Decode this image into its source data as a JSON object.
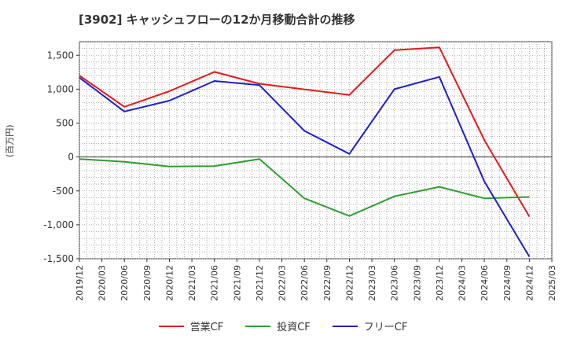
{
  "chart_data": {
    "type": "line",
    "title": "[3902]  キャッシュフローの12か月移動合計の推移",
    "xlabel": "",
    "ylabel": "(百万円)",
    "ylim": [
      -1500,
      1700
    ],
    "yticks": [
      1500,
      1000,
      500,
      0,
      -500,
      -1000,
      -1500
    ],
    "ytick_labels": [
      "1,500",
      "1,000",
      "500",
      "0",
      "-500",
      "-1,000",
      "-1,500"
    ],
    "xticks": [
      "2019/12",
      "2020/03",
      "2020/06",
      "2020/09",
      "2020/12",
      "2021/03",
      "2021/06",
      "2021/09",
      "2021/12",
      "2022/03",
      "2022/06",
      "2022/09",
      "2022/12",
      "2023/03",
      "2023/06",
      "2023/09",
      "2023/12",
      "2024/03",
      "2024/06",
      "2024/09",
      "2024/12",
      "2025/03"
    ],
    "grid": true,
    "legend_position": "bottom",
    "series": [
      {
        "name": "営業CF",
        "color": "#e31a1c",
        "x": [
          "2019/12",
          "2020/06",
          "2020/12",
          "2021/06",
          "2021/12",
          "2022/12",
          "2023/06",
          "2023/12",
          "2024/06",
          "2024/12"
        ],
        "values": [
          1200,
          740,
          970,
          1255,
          1080,
          915,
          1575,
          1615,
          250,
          -880
        ]
      },
      {
        "name": "投資CF",
        "color": "#2ca02c",
        "x": [
          "2019/12",
          "2020/06",
          "2020/12",
          "2021/06",
          "2021/12",
          "2022/06",
          "2022/12",
          "2023/06",
          "2023/12",
          "2024/06",
          "2024/12"
        ],
        "values": [
          -30,
          -70,
          -140,
          -135,
          -30,
          -610,
          -870,
          -580,
          -440,
          -610,
          -590
        ]
      },
      {
        "name": "フリーCF",
        "color": "#1f1fcc",
        "x": [
          "2019/12",
          "2020/06",
          "2020/12",
          "2021/06",
          "2021/12",
          "2022/06",
          "2022/12",
          "2023/06",
          "2023/12",
          "2024/06",
          "2024/12"
        ],
        "values": [
          1170,
          670,
          830,
          1120,
          1060,
          385,
          45,
          1000,
          1180,
          -360,
          -1470
        ]
      }
    ]
  }
}
